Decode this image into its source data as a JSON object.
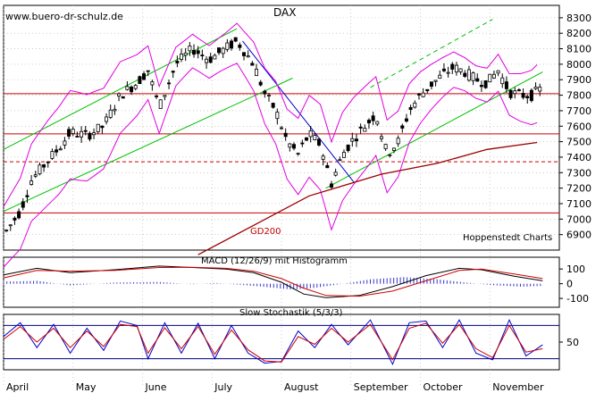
{
  "chart_data": {
    "type": "candlestick",
    "title": "DAX",
    "watermark": "www.buero-dr-schulz.de",
    "source": "Hoppenstedt Charts",
    "price_axis": [
      6900,
      7000,
      7100,
      7200,
      7300,
      7400,
      7500,
      7600,
      7700,
      7800,
      7900,
      8000,
      8100,
      8200,
      8300
    ],
    "price_range": [
      6800,
      8380
    ],
    "months": [
      "April",
      "May",
      "June",
      "July",
      "August",
      "September",
      "October",
      "November"
    ],
    "horizontal_levels": [
      {
        "value": 7810,
        "style": "solid"
      },
      {
        "value": 7550,
        "style": "solid"
      },
      {
        "value": 7370,
        "style": "dashed"
      },
      {
        "value": 7040,
        "style": "solid"
      }
    ],
    "ma_label": "GD200",
    "ma200": [
      [
        0.35,
        6770
      ],
      [
        0.45,
        6960
      ],
      [
        0.55,
        7150
      ],
      [
        0.68,
        7290
      ],
      [
        0.78,
        7360
      ],
      [
        0.87,
        7450
      ],
      [
        0.96,
        7495
      ]
    ],
    "price_path": [
      [
        0.0,
        6900
      ],
      [
        0.03,
        7050
      ],
      [
        0.05,
        7250
      ],
      [
        0.08,
        7380
      ],
      [
        0.1,
        7460
      ],
      [
        0.12,
        7560
      ],
      [
        0.15,
        7540
      ],
      [
        0.18,
        7600
      ],
      [
        0.21,
        7800
      ],
      [
        0.24,
        7880
      ],
      [
        0.26,
        7960
      ],
      [
        0.28,
        7720
      ],
      [
        0.31,
        8000
      ],
      [
        0.34,
        8100
      ],
      [
        0.37,
        8030
      ],
      [
        0.39,
        8080
      ],
      [
        0.42,
        8150
      ],
      [
        0.45,
        8000
      ],
      [
        0.47,
        7810
      ],
      [
        0.49,
        7700
      ],
      [
        0.51,
        7500
      ],
      [
        0.53,
        7420
      ],
      [
        0.55,
        7550
      ],
      [
        0.57,
        7480
      ],
      [
        0.59,
        7230
      ],
      [
        0.61,
        7420
      ],
      [
        0.63,
        7520
      ],
      [
        0.65,
        7600
      ],
      [
        0.67,
        7680
      ],
      [
        0.69,
        7420
      ],
      [
        0.71,
        7500
      ],
      [
        0.73,
        7700
      ],
      [
        0.75,
        7800
      ],
      [
        0.77,
        7870
      ],
      [
        0.79,
        7930
      ],
      [
        0.81,
        7980
      ],
      [
        0.83,
        7950
      ],
      [
        0.85,
        7900
      ],
      [
        0.87,
        7880
      ],
      [
        0.89,
        7960
      ],
      [
        0.91,
        7820
      ],
      [
        0.93,
        7800
      ],
      [
        0.95,
        7800
      ],
      [
        0.97,
        7850
      ]
    ],
    "macd": {
      "label": "MACD (12/26/9) mit Histogramm",
      "axis": [
        100,
        0,
        -100
      ],
      "range": [
        -160,
        180
      ],
      "macd_line": [
        [
          0.0,
          60
        ],
        [
          0.06,
          105
        ],
        [
          0.12,
          75
        ],
        [
          0.2,
          95
        ],
        [
          0.28,
          120
        ],
        [
          0.34,
          110
        ],
        [
          0.4,
          100
        ],
        [
          0.45,
          75
        ],
        [
          0.5,
          10
        ],
        [
          0.54,
          -70
        ],
        [
          0.58,
          -95
        ],
        [
          0.64,
          -80
        ],
        [
          0.7,
          -20
        ],
        [
          0.76,
          55
        ],
        [
          0.82,
          105
        ],
        [
          0.86,
          95
        ],
        [
          0.92,
          50
        ],
        [
          0.97,
          20
        ]
      ],
      "signal_line": [
        [
          0.0,
          40
        ],
        [
          0.06,
          90
        ],
        [
          0.12,
          85
        ],
        [
          0.2,
          90
        ],
        [
          0.28,
          110
        ],
        [
          0.34,
          112
        ],
        [
          0.4,
          105
        ],
        [
          0.45,
          85
        ],
        [
          0.5,
          35
        ],
        [
          0.54,
          -30
        ],
        [
          0.58,
          -80
        ],
        [
          0.64,
          -85
        ],
        [
          0.7,
          -50
        ],
        [
          0.76,
          20
        ],
        [
          0.82,
          90
        ],
        [
          0.86,
          100
        ],
        [
          0.92,
          65
        ],
        [
          0.97,
          35
        ]
      ],
      "histogram": [
        [
          0.02,
          15
        ],
        [
          0.06,
          20
        ],
        [
          0.12,
          -12
        ],
        [
          0.2,
          8
        ],
        [
          0.28,
          12
        ],
        [
          0.34,
          -4
        ],
        [
          0.38,
          6
        ],
        [
          0.46,
          -18
        ],
        [
          0.52,
          -40
        ],
        [
          0.56,
          -28
        ],
        [
          0.62,
          5
        ],
        [
          0.66,
          30
        ],
        [
          0.72,
          45
        ],
        [
          0.78,
          30
        ],
        [
          0.84,
          5
        ],
        [
          0.88,
          -10
        ],
        [
          0.93,
          -20
        ],
        [
          0.97,
          -15
        ]
      ]
    },
    "stochastic": {
      "label": "Slow Stochastik (5/3/3)",
      "axis": [
        50
      ],
      "levels": [
        80,
        20
      ],
      "k_line": [
        [
          0.0,
          60
        ],
        [
          0.03,
          85
        ],
        [
          0.06,
          40
        ],
        [
          0.09,
          82
        ],
        [
          0.12,
          30
        ],
        [
          0.15,
          75
        ],
        [
          0.18,
          35
        ],
        [
          0.21,
          88
        ],
        [
          0.24,
          80
        ],
        [
          0.26,
          20
        ],
        [
          0.29,
          85
        ],
        [
          0.32,
          30
        ],
        [
          0.35,
          84
        ],
        [
          0.38,
          20
        ],
        [
          0.41,
          80
        ],
        [
          0.44,
          30
        ],
        [
          0.47,
          12
        ],
        [
          0.5,
          15
        ],
        [
          0.53,
          70
        ],
        [
          0.56,
          40
        ],
        [
          0.59,
          82
        ],
        [
          0.62,
          45
        ],
        [
          0.66,
          90
        ],
        [
          0.7,
          10
        ],
        [
          0.73,
          85
        ],
        [
          0.76,
          88
        ],
        [
          0.79,
          40
        ],
        [
          0.82,
          90
        ],
        [
          0.85,
          30
        ],
        [
          0.88,
          18
        ],
        [
          0.91,
          90
        ],
        [
          0.94,
          25
        ],
        [
          0.97,
          45
        ]
      ],
      "d_line": [
        [
          0.0,
          55
        ],
        [
          0.03,
          78
        ],
        [
          0.06,
          50
        ],
        [
          0.09,
          75
        ],
        [
          0.12,
          40
        ],
        [
          0.15,
          70
        ],
        [
          0.18,
          42
        ],
        [
          0.21,
          82
        ],
        [
          0.24,
          78
        ],
        [
          0.26,
          30
        ],
        [
          0.29,
          76
        ],
        [
          0.32,
          38
        ],
        [
          0.35,
          78
        ],
        [
          0.38,
          28
        ],
        [
          0.41,
          72
        ],
        [
          0.44,
          36
        ],
        [
          0.47,
          16
        ],
        [
          0.5,
          14
        ],
        [
          0.53,
          60
        ],
        [
          0.56,
          46
        ],
        [
          0.59,
          75
        ],
        [
          0.62,
          50
        ],
        [
          0.66,
          82
        ],
        [
          0.7,
          18
        ],
        [
          0.73,
          75
        ],
        [
          0.76,
          84
        ],
        [
          0.79,
          48
        ],
        [
          0.82,
          82
        ],
        [
          0.85,
          38
        ],
        [
          0.88,
          22
        ],
        [
          0.91,
          80
        ],
        [
          0.94,
          32
        ],
        [
          0.97,
          38
        ]
      ]
    },
    "colors": {
      "candle": "#000000",
      "bollinger": "#e000e0",
      "channel": "#00c000",
      "levels": "#cc0000",
      "ma200": "#990000",
      "trendline": "#0000cc",
      "macd_hist": "#3333cc",
      "signal": "#cc0000",
      "grid": "#b0b0b0"
    }
  }
}
